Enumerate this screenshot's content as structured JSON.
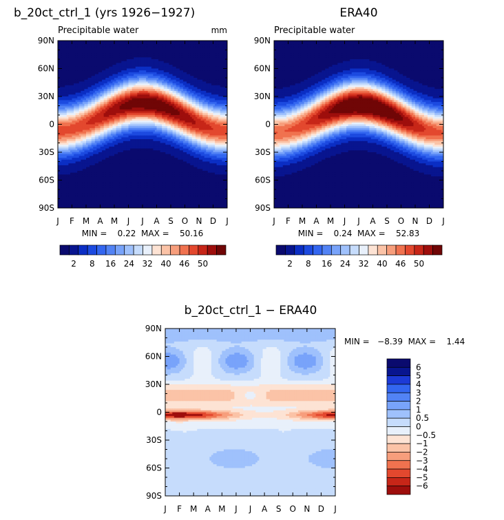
{
  "ramp1": [
    "#0a0a6e",
    "#08158f",
    "#0b2ec4",
    "#1c4ae0",
    "#3366f0",
    "#5283f5",
    "#78a3fa",
    "#9fc1fc",
    "#c6dcfc",
    "#e8f0fb",
    "#fde3d4",
    "#fbc3a7",
    "#f79e7c",
    "#f0724f",
    "#e3482e",
    "#c72618",
    "#9e0e0c",
    "#700606"
  ],
  "ramp1_labels": [
    "2",
    "8",
    "16",
    "24",
    "32",
    "40",
    "46",
    "50"
  ],
  "ramp2": [
    "#0a0a6e",
    "#08158f",
    "#1c3ad6",
    "#3366f0",
    "#5283f5",
    "#78a3fa",
    "#9fc1fc",
    "#c6dcfc",
    "#e8f0fb",
    "#fde3d4",
    "#fbc3a7",
    "#f79e7c",
    "#f0724f",
    "#e3482e",
    "#c72618",
    "#9e0e0c"
  ],
  "ramp2_labels": [
    "6",
    "5",
    "4",
    "3",
    "2",
    "1",
    "0.5",
    "0",
    "−0.5",
    "−1",
    "−2",
    "−3",
    "−4",
    "−5",
    "−6"
  ],
  "chart_data": [
    {
      "type": "heatmap",
      "title": "b_20ct_ctrl_1 (yrs 1926−1927)",
      "subtitle": "Precipitable water",
      "units": "mm",
      "minmax": "MIN =    0.22  MAX =    50.16",
      "x_ticks": [
        "J",
        "F",
        "M",
        "A",
        "M",
        "J",
        "J",
        "A",
        "S",
        "O",
        "N",
        "D",
        "J"
      ],
      "y_ticks": [
        "90N",
        "60N",
        "30N",
        "0",
        "30S",
        "60S",
        "90S"
      ],
      "peak": 50.16,
      "center_lat": 8,
      "width": 24,
      "seasonal_amp": 5,
      "seasonal_peak_month": 7.5
    },
    {
      "type": "heatmap",
      "title": "ERA40",
      "subtitle": "Precipitable water",
      "units": "",
      "minmax": "MIN =    0.24  MAX =    52.83",
      "x_ticks": [
        "J",
        "F",
        "M",
        "A",
        "M",
        "J",
        "J",
        "A",
        "S",
        "O",
        "N",
        "D",
        "J"
      ],
      "y_ticks": [
        "90N",
        "60N",
        "30N",
        "0",
        "30S",
        "60S",
        "90S"
      ],
      "peak": 52.83,
      "center_lat": 6,
      "width": 24,
      "seasonal_amp": 7,
      "seasonal_peak_month": 7.5
    },
    {
      "type": "heatmap",
      "title": "b_20ct_ctrl_1 − ERA40",
      "subtitle": "",
      "units": "",
      "minmax": "MIN =   −8.39  MAX =    1.44",
      "x_ticks": [
        "J",
        "F",
        "M",
        "A",
        "M",
        "J",
        "J",
        "A",
        "S",
        "O",
        "N",
        "D",
        "J"
      ],
      "y_ticks": [
        "90N",
        "60N",
        "30N",
        "0",
        "30S",
        "60S",
        "90S"
      ],
      "value_range": [
        -8.39,
        1.44
      ]
    }
  ]
}
